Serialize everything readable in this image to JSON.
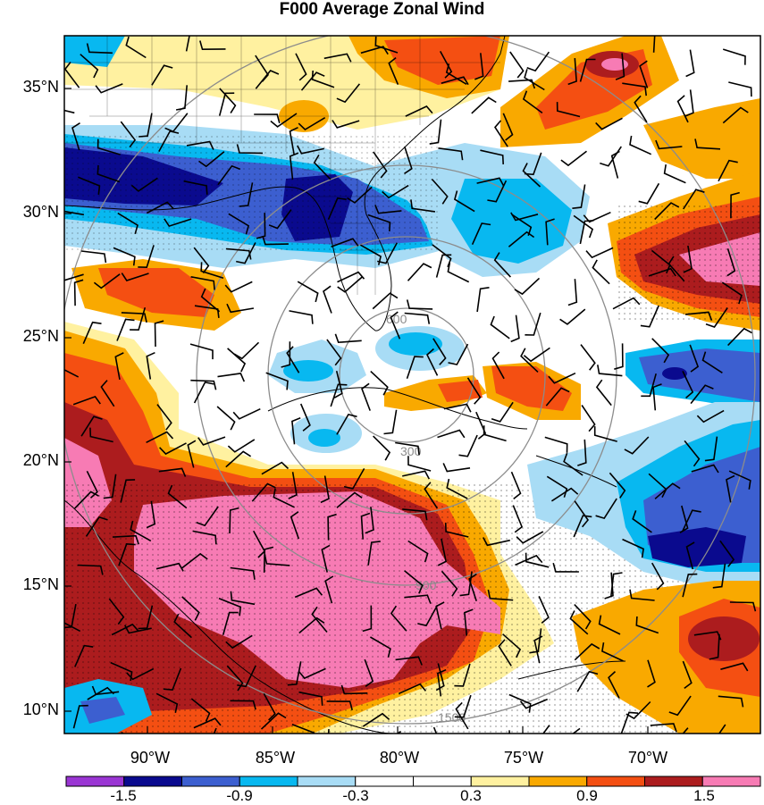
{
  "title": "F000 Average Zonal Wind",
  "lat_labels": [
    "35°N",
    "30°N",
    "25°N",
    "20°N",
    "15°N",
    "10°N"
  ],
  "lon_labels": [
    "90°W",
    "85°W",
    "80°W",
    "75°W",
    "70°W"
  ],
  "colorbar": {
    "colors": [
      "#9a35d3",
      "#0a0a8e",
      "#3c5fd0",
      "#08b8f0",
      "#a8dcf5",
      "#ffffff",
      "#ffffff",
      "#fff1a0",
      "#f9a900",
      "#f44f12",
      "#ac1c1e",
      "#f77bb4"
    ],
    "labels": [
      "-1.5",
      "-0.9",
      "-0.3",
      "0.3",
      "0.9",
      "1.5"
    ]
  },
  "range_rings": [
    "300",
    "600",
    "900",
    "1500"
  ]
}
